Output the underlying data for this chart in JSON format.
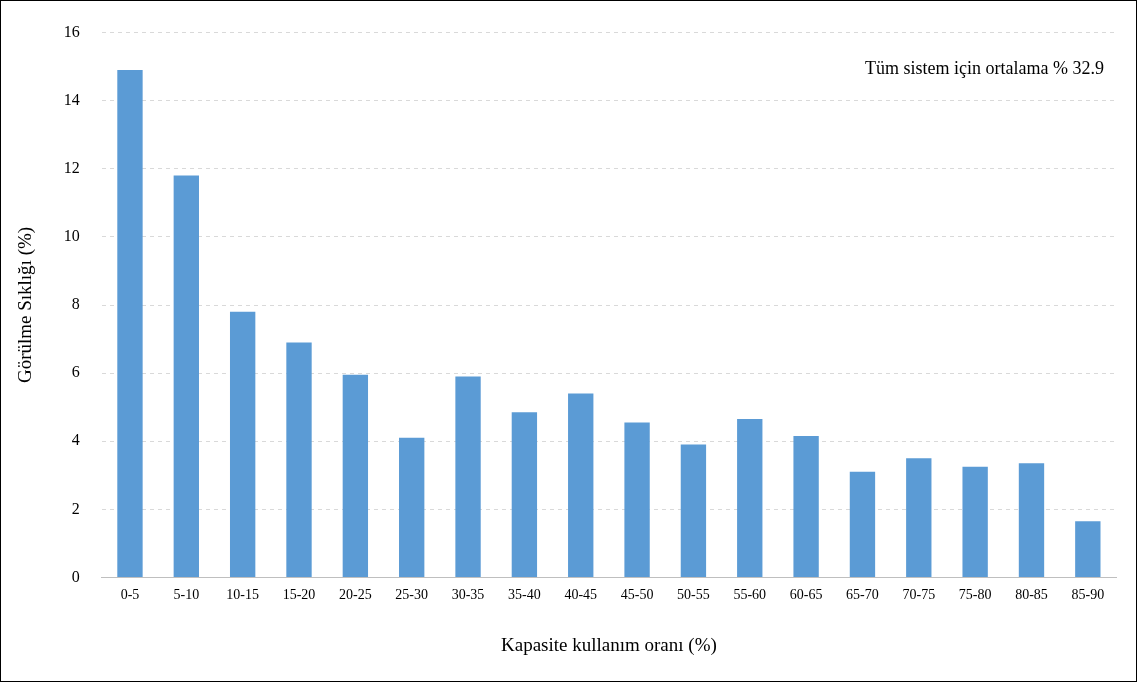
{
  "chart_data": {
    "type": "bar",
    "xlabel": "Kapasite kullanım oranı (%)",
    "ylabel": "Görülme Sıklığı (%)",
    "categories": [
      "0-5",
      "5-10",
      "10-15",
      "15-20",
      "20-25",
      "25-30",
      "30-35",
      "35-40",
      "40-45",
      "45-50",
      "50-55",
      "55-60",
      "60-65",
      "65-70",
      "70-75",
      "75-80",
      "80-85",
      "85-90"
    ],
    "values": [
      14.9,
      11.8,
      7.8,
      6.9,
      5.95,
      4.1,
      5.9,
      4.85,
      5.4,
      4.55,
      3.9,
      4.65,
      4.15,
      3.1,
      3.5,
      3.25,
      3.35,
      1.65
    ],
    "color": "#5b9bd5",
    "ylim": [
      0,
      16
    ],
    "yticks": [
      0,
      2,
      4,
      6,
      8,
      10,
      12,
      14,
      16
    ],
    "grid": "y",
    "annotations": [
      "Tüm sistem için ortalama % 32.9"
    ]
  }
}
